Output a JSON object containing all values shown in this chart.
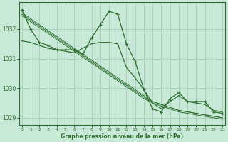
{
  "bg_color": "#c8e8d8",
  "grid_color": "#a0c8b0",
  "line_color": "#2d6e2d",
  "text_color": "#2d6e2d",
  "xlabel": "Graphe pression niveau de la mer (hPa)",
  "hours": [
    0,
    1,
    2,
    3,
    4,
    5,
    6,
    7,
    8,
    9,
    10,
    11,
    12,
    13,
    14,
    15,
    16,
    17,
    18,
    19,
    20,
    21,
    22,
    23
  ],
  "main_series": [
    1032.65,
    1032.0,
    1031.55,
    1031.45,
    1031.3,
    1031.3,
    1031.3,
    1031.15,
    1031.7,
    1032.15,
    1032.6,
    1032.5,
    1031.5,
    1030.9,
    1029.95,
    1029.3,
    1029.2,
    1029.65,
    1029.85,
    1029.55,
    1029.55,
    1029.55,
    1029.2,
    1029.15
  ],
  "trend1": [
    1032.55,
    1032.35,
    1032.15,
    1031.95,
    1031.75,
    1031.55,
    1031.35,
    1031.15,
    1030.95,
    1030.75,
    1030.55,
    1030.35,
    1030.15,
    1029.95,
    1029.75,
    1029.55,
    1029.45,
    1029.35,
    1029.25,
    1029.2,
    1029.15,
    1029.1,
    1029.05,
    1029.0
  ],
  "trend2": [
    1032.5,
    1032.3,
    1032.1,
    1031.9,
    1031.7,
    1031.5,
    1031.3,
    1031.1,
    1030.9,
    1030.7,
    1030.5,
    1030.3,
    1030.1,
    1029.9,
    1029.7,
    1029.55,
    1029.45,
    1029.35,
    1029.25,
    1029.2,
    1029.15,
    1029.1,
    1029.05,
    1029.0
  ],
  "trend3": [
    1032.45,
    1032.25,
    1032.05,
    1031.85,
    1031.65,
    1031.45,
    1031.25,
    1031.05,
    1030.85,
    1030.65,
    1030.45,
    1030.25,
    1030.05,
    1029.85,
    1029.65,
    1029.5,
    1029.4,
    1029.3,
    1029.2,
    1029.15,
    1029.1,
    1029.05,
    1029.0,
    1028.95
  ],
  "smooth_series": [
    1031.6,
    1031.55,
    1031.45,
    1031.35,
    1031.3,
    1031.25,
    1031.2,
    1031.35,
    1031.5,
    1031.55,
    1031.55,
    1031.5,
    1030.7,
    1030.35,
    1029.95,
    1029.5,
    1029.3,
    1029.55,
    1029.75,
    1029.55,
    1029.5,
    1029.45,
    1029.25,
    1029.2
  ],
  "ylim": [
    1028.75,
    1032.9
  ],
  "yticks": [
    1029,
    1030,
    1031,
    1032
  ],
  "figsize": [
    3.2,
    2.0
  ],
  "dpi": 100
}
